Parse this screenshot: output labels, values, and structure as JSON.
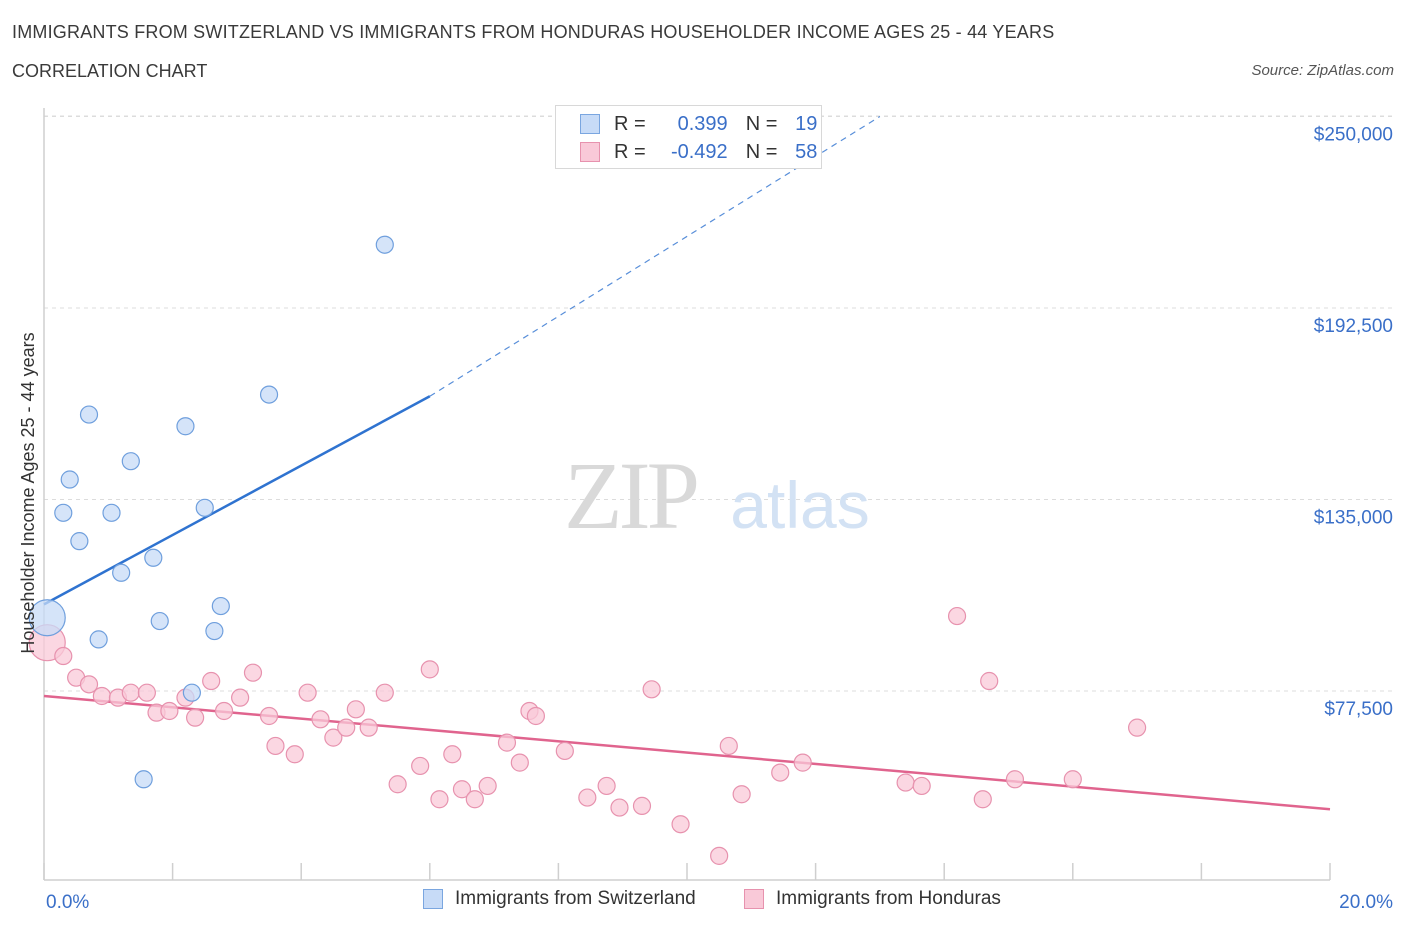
{
  "title": "IMMIGRANTS FROM SWITZERLAND VS IMMIGRANTS FROM HONDURAS HOUSEHOLDER INCOME AGES 25 - 44 YEARS",
  "subtitle": "CORRELATION CHART",
  "source": "Source: ZipAtlas.com",
  "watermark": {
    "zip": "ZIP",
    "atlas": "atlas"
  },
  "legend": {
    "r_label": "R =",
    "n_label": "N =",
    "rows": [
      {
        "r": "0.399",
        "n": "19",
        "fill": "#c7dbf7",
        "stroke": "#7aa6e0"
      },
      {
        "r": "-0.492",
        "n": "58",
        "fill": "#f9c9d8",
        "stroke": "#e792ae"
      }
    ]
  },
  "bottom_legend": [
    "Immigrants from Switzerland",
    "Immigrants from Honduras"
  ],
  "colors": {
    "switzerland_fill": "#c7dbf7",
    "switzerland_stroke": "#6f9fdd",
    "switzerland_line": "#2f73d0",
    "honduras_fill": "#f9c9d8",
    "honduras_stroke": "#e792ae",
    "honduras_line": "#e0648e",
    "axis_label": "#3a6fc8",
    "grid": "#dcdcdc"
  },
  "chart_data": {
    "type": "scatter",
    "title": "IMMIGRANTS FROM SWITZERLAND VS IMMIGRANTS FROM HONDURAS HOUSEHOLDER INCOME AGES 25 - 44 YEARS",
    "xlabel": "",
    "ylabel": "Householder Income Ages 25 - 44 years",
    "x_tick_labels": [
      "0.0%",
      "20.0%"
    ],
    "y_ticks": [
      77500,
      135000,
      192500,
      250000
    ],
    "y_tick_labels": [
      "$77,500",
      "$135,000",
      "$192,500",
      "$250,000"
    ],
    "xlim": [
      0,
      20
    ],
    "ylim": [
      20000,
      255000
    ],
    "grid": true,
    "legend_position": "top-center",
    "series": [
      {
        "name": "Immigrants from Switzerland",
        "points": [
          {
            "x": 0.05,
            "y": 99500,
            "big": true
          },
          {
            "x": 0.3,
            "y": 131000
          },
          {
            "x": 0.4,
            "y": 141000
          },
          {
            "x": 0.55,
            "y": 122500
          },
          {
            "x": 0.7,
            "y": 160500
          },
          {
            "x": 0.85,
            "y": 93000
          },
          {
            "x": 1.05,
            "y": 131000
          },
          {
            "x": 1.2,
            "y": 113000
          },
          {
            "x": 1.35,
            "y": 146500
          },
          {
            "x": 1.55,
            "y": 51000
          },
          {
            "x": 1.7,
            "y": 117500
          },
          {
            "x": 1.8,
            "y": 98500
          },
          {
            "x": 2.2,
            "y": 157000
          },
          {
            "x": 2.3,
            "y": 77000
          },
          {
            "x": 2.5,
            "y": 132500
          },
          {
            "x": 2.65,
            "y": 95500
          },
          {
            "x": 2.75,
            "y": 103000
          },
          {
            "x": 3.5,
            "y": 166500
          },
          {
            "x": 5.3,
            "y": 211500
          }
        ],
        "trend": {
          "x0": 0,
          "y0": 103500,
          "x1": 6.0,
          "y1": 166000,
          "dashed_to_x": 13.0,
          "dashed_to_y": 250000
        }
      },
      {
        "name": "Immigrants from Honduras",
        "points": [
          {
            "x": 0.05,
            "y": 92000,
            "big": true
          },
          {
            "x": 0.3,
            "y": 88000
          },
          {
            "x": 0.5,
            "y": 81500
          },
          {
            "x": 0.7,
            "y": 79500
          },
          {
            "x": 0.9,
            "y": 76000
          },
          {
            "x": 1.15,
            "y": 75500
          },
          {
            "x": 1.35,
            "y": 77000
          },
          {
            "x": 1.6,
            "y": 77000
          },
          {
            "x": 1.75,
            "y": 71000
          },
          {
            "x": 1.95,
            "y": 71500
          },
          {
            "x": 2.2,
            "y": 75500
          },
          {
            "x": 2.35,
            "y": 69500
          },
          {
            "x": 2.6,
            "y": 80500
          },
          {
            "x": 2.8,
            "y": 71500
          },
          {
            "x": 3.05,
            "y": 75500
          },
          {
            "x": 3.25,
            "y": 83000
          },
          {
            "x": 3.5,
            "y": 70000
          },
          {
            "x": 3.6,
            "y": 61000
          },
          {
            "x": 3.9,
            "y": 58500
          },
          {
            "x": 4.1,
            "y": 77000
          },
          {
            "x": 4.3,
            "y": 69000
          },
          {
            "x": 4.5,
            "y": 63500
          },
          {
            "x": 4.7,
            "y": 66500
          },
          {
            "x": 4.85,
            "y": 72000
          },
          {
            "x": 5.05,
            "y": 66500
          },
          {
            "x": 5.3,
            "y": 77000
          },
          {
            "x": 5.5,
            "y": 49500
          },
          {
            "x": 5.85,
            "y": 55000
          },
          {
            "x": 6.0,
            "y": 84000
          },
          {
            "x": 6.15,
            "y": 45000
          },
          {
            "x": 6.35,
            "y": 58500
          },
          {
            "x": 6.5,
            "y": 48000
          },
          {
            "x": 6.7,
            "y": 45000
          },
          {
            "x": 6.9,
            "y": 49000
          },
          {
            "x": 7.2,
            "y": 62000
          },
          {
            "x": 7.4,
            "y": 56000
          },
          {
            "x": 7.55,
            "y": 71500
          },
          {
            "x": 7.65,
            "y": 70000
          },
          {
            "x": 8.1,
            "y": 59500
          },
          {
            "x": 8.45,
            "y": 45500
          },
          {
            "x": 8.75,
            "y": 49000
          },
          {
            "x": 8.95,
            "y": 42500
          },
          {
            "x": 9.3,
            "y": 43000
          },
          {
            "x": 9.45,
            "y": 78000
          },
          {
            "x": 9.9,
            "y": 37500
          },
          {
            "x": 10.5,
            "y": 28000
          },
          {
            "x": 10.65,
            "y": 61000
          },
          {
            "x": 10.85,
            "y": 46500
          },
          {
            "x": 11.45,
            "y": 53000
          },
          {
            "x": 11.8,
            "y": 56000
          },
          {
            "x": 13.4,
            "y": 50000
          },
          {
            "x": 13.65,
            "y": 49000
          },
          {
            "x": 14.2,
            "y": 100000
          },
          {
            "x": 14.6,
            "y": 45000
          },
          {
            "x": 14.7,
            "y": 80500
          },
          {
            "x": 15.1,
            "y": 51000
          },
          {
            "x": 16.0,
            "y": 51000
          },
          {
            "x": 17.0,
            "y": 66500
          }
        ],
        "trend": {
          "x0": 0,
          "y0": 76000,
          "x1": 20.0,
          "y1": 42000
        }
      }
    ]
  }
}
